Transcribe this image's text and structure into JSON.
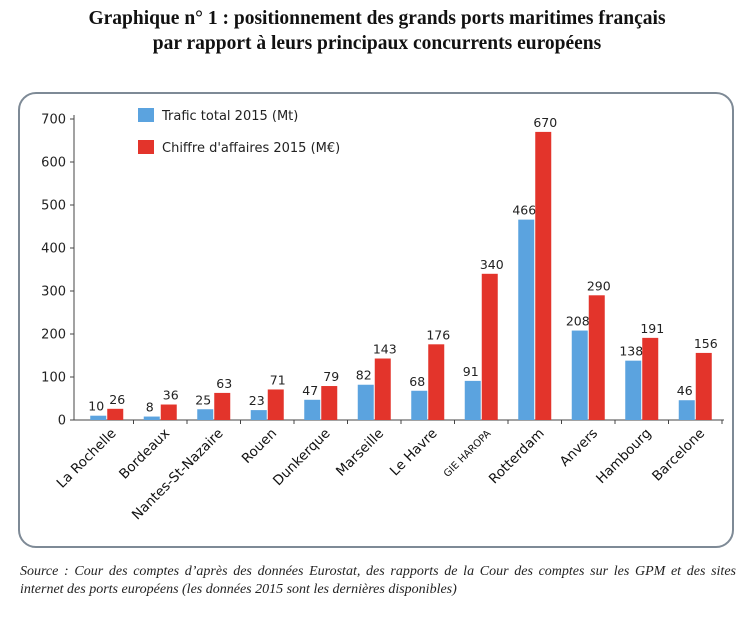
{
  "title_line1": "Graphique n° 1 : positionnement des grands ports maritimes français",
  "title_line2": "par rapport à leurs principaux concurrents européens",
  "source": "Source : Cour des comptes d’après des données Eurostat, des rapports de la Cour des comptes sur les GPM et des sites internet des ports européens (les données 2015 sont les dernières disponibles)",
  "colors": {
    "trafic": "#5ba3df",
    "ca": "#e3342b",
    "axis": "#444444",
    "border": "#7e8a96"
  },
  "chart_data": {
    "type": "bar",
    "categories": [
      "La Rochelle",
      "Bordeaux",
      "Nantes-St-Nazaire",
      "Rouen",
      "Dunkerque",
      "Marseille",
      "Le Havre",
      "GIE HAROPA",
      "Rotterdam",
      "Anvers",
      "Hambourg",
      "Barcelone"
    ],
    "series": [
      {
        "name": "Trafic total 2015 (Mt)",
        "values": [
          10,
          8,
          25,
          23,
          47,
          82,
          68,
          91,
          466,
          208,
          138,
          46
        ]
      },
      {
        "name": "Chiffre d'affaires 2015 (M€)",
        "values": [
          26,
          36,
          63,
          71,
          79,
          143,
          176,
          340,
          670,
          290,
          191,
          156
        ]
      }
    ],
    "yticks": [
      "0",
      "100",
      "200",
      "300",
      "400",
      "500",
      "600",
      "700"
    ],
    "ylim": [
      0,
      700
    ],
    "grid": false,
    "legend": "top-left",
    "title": "",
    "xlabel": "",
    "ylabel": ""
  }
}
